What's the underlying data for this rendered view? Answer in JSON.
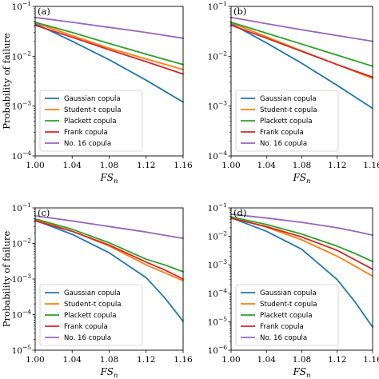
{
  "figure": {
    "colors": {
      "Gaussian copula": "#1f77b4",
      "Student-t copula": "#ff7f0e",
      "Plackett copula": "#2ca02c",
      "Frank copula": "#d62728",
      "No. 16 copula": "#9467bd"
    }
  },
  "chart_data": [
    {
      "panel": "(a)",
      "type": "line",
      "xlabel": "FS",
      "xlabel_sub": "n",
      "ylabel": "Probability of failure",
      "yscale": "log",
      "xlim": [
        1.0,
        1.16
      ],
      "ylim_exp": [
        -4,
        -1
      ],
      "xticks": [
        "1.00",
        "1.04",
        "1.08",
        "1.12",
        "1.16"
      ],
      "yticks": [
        -4,
        -3,
        -2,
        -1
      ],
      "legend": "lower-left",
      "x": [
        1.0,
        1.04,
        1.08,
        1.12,
        1.16
      ],
      "series": [
        {
          "name": "Gaussian copula",
          "values": [
            0.045,
            0.02,
            0.0085,
            0.0033,
            0.0012
          ]
        },
        {
          "name": "Student-t copula",
          "values": [
            0.047,
            0.026,
            0.0145,
            0.0088,
            0.0054
          ]
        },
        {
          "name": "Plackett copula",
          "values": [
            0.048,
            0.03,
            0.018,
            0.011,
            0.0068
          ]
        },
        {
          "name": "Frank copula",
          "values": [
            0.042,
            0.024,
            0.0135,
            0.0078,
            0.0044
          ]
        },
        {
          "name": "No. 16 copula",
          "values": [
            0.06,
            0.048,
            0.038,
            0.03,
            0.023
          ]
        }
      ]
    },
    {
      "panel": "(b)",
      "type": "line",
      "xlabel": "FS",
      "xlabel_sub": "n",
      "ylabel": "",
      "yscale": "log",
      "xlim": [
        1.0,
        1.16
      ],
      "ylim_exp": [
        -4,
        -1
      ],
      "xticks": [
        "1.00",
        "1.04",
        "1.08",
        "1.12",
        "1.16"
      ],
      "yticks": [
        -4,
        -3,
        -2,
        -1
      ],
      "legend": "lower-left",
      "x": [
        1.0,
        1.04,
        1.08,
        1.12,
        1.16
      ],
      "series": [
        {
          "name": "Gaussian copula",
          "values": [
            0.045,
            0.0185,
            0.0072,
            0.0026,
            0.0009
          ]
        },
        {
          "name": "Student-t copula",
          "values": [
            0.047,
            0.0245,
            0.0128,
            0.0068,
            0.0036
          ]
        },
        {
          "name": "Plackett copula",
          "values": [
            0.048,
            0.029,
            0.0175,
            0.0105,
            0.0063
          ]
        },
        {
          "name": "Frank copula",
          "values": [
            0.042,
            0.023,
            0.0125,
            0.0068,
            0.0038
          ]
        },
        {
          "name": "No. 16 copula",
          "values": [
            0.06,
            0.045,
            0.034,
            0.026,
            0.02
          ]
        }
      ]
    },
    {
      "panel": "(c)",
      "type": "line",
      "xlabel": "FS",
      "xlabel_sub": "n",
      "ylabel": "Probability of failure",
      "yscale": "log",
      "xlim": [
        1.0,
        1.16
      ],
      "ylim_exp": [
        -5,
        -1
      ],
      "xticks": [
        "1.00",
        "1.04",
        "1.08",
        "1.12",
        "1.16"
      ],
      "yticks": [
        -5,
        -4,
        -3,
        -2,
        -1
      ],
      "legend": "lower-left",
      "x": [
        1.0,
        1.04,
        1.08,
        1.12,
        1.14,
        1.16
      ],
      "series": [
        {
          "name": "Gaussian copula",
          "values": [
            0.045,
            0.018,
            0.0055,
            0.0011,
            0.0003,
            6.5e-05
          ]
        },
        {
          "name": "Student-t copula",
          "values": [
            0.047,
            0.022,
            0.0085,
            0.0025,
            0.0015,
            0.0009
          ]
        },
        {
          "name": "Plackett copula",
          "values": [
            0.049,
            0.025,
            0.0105,
            0.0036,
            0.0025,
            0.0016
          ]
        },
        {
          "name": "Frank copula",
          "values": [
            0.043,
            0.022,
            0.009,
            0.003,
            0.0018,
            0.001
          ]
        },
        {
          "name": "No. 16 copula",
          "values": [
            0.06,
            0.043,
            0.03,
            0.021,
            0.017,
            0.014
          ]
        }
      ]
    },
    {
      "panel": "(d)",
      "type": "line",
      "xlabel": "FS",
      "xlabel_sub": "n",
      "ylabel": "",
      "yscale": "log",
      "xlim": [
        1.0,
        1.16
      ],
      "ylim_exp": [
        -6,
        -1
      ],
      "xticks": [
        "1.00",
        "1.04",
        "1.08",
        "1.12",
        "1.16"
      ],
      "yticks": [
        -6,
        -5,
        -4,
        -3,
        -2,
        -1
      ],
      "legend": "lower-left",
      "x": [
        1.0,
        1.04,
        1.08,
        1.12,
        1.14,
        1.16
      ],
      "series": [
        {
          "name": "Gaussian copula",
          "values": [
            0.045,
            0.015,
            0.0035,
            0.0003,
            5e-05,
            6.5e-06
          ]
        },
        {
          "name": "Student-t copula",
          "values": [
            0.047,
            0.021,
            0.0075,
            0.002,
            0.0009,
            0.0004
          ]
        },
        {
          "name": "Plackett copula",
          "values": [
            0.048,
            0.026,
            0.012,
            0.0045,
            0.0025,
            0.0013
          ]
        },
        {
          "name": "Frank copula",
          "values": [
            0.043,
            0.022,
            0.0095,
            0.0032,
            0.0015,
            0.0007
          ]
        },
        {
          "name": "No. 16 copula",
          "values": [
            0.06,
            0.044,
            0.031,
            0.02,
            0.015,
            0.011
          ]
        }
      ]
    }
  ]
}
